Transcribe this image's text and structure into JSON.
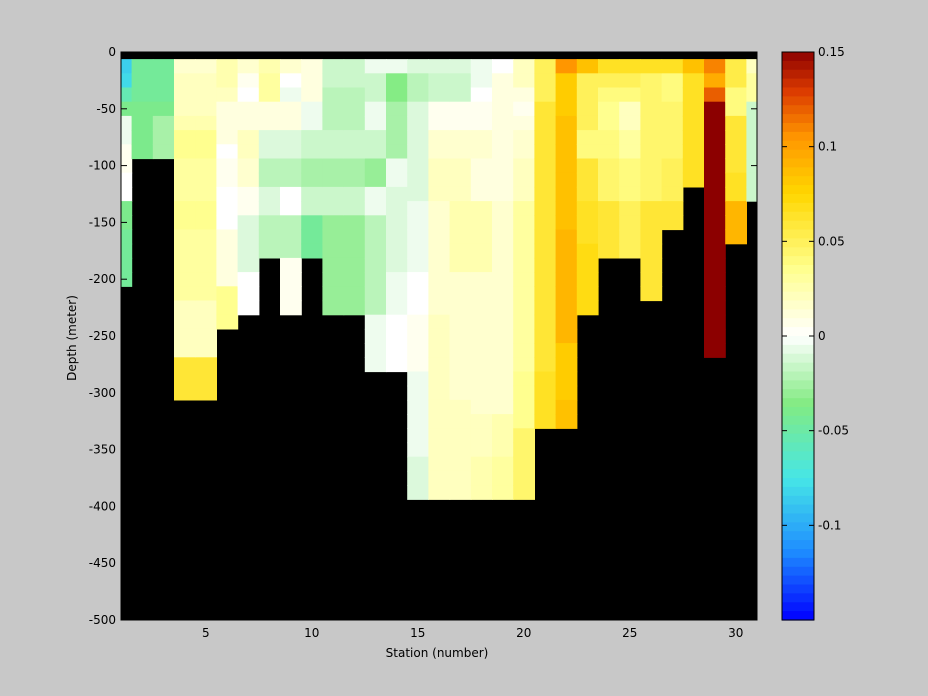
{
  "chart_data": {
    "type": "heatmap",
    "title": "",
    "xlabel": "Station (number)",
    "ylabel": "Depth (meter)",
    "xlim": [
      1,
      31
    ],
    "ylim": [
      -500,
      0
    ],
    "xticks": [
      5,
      10,
      15,
      20,
      25,
      30
    ],
    "yticks": [
      0,
      -50,
      -100,
      -150,
      -200,
      -250,
      -300,
      -350,
      -400,
      -450,
      -500
    ],
    "clim": [
      -0.15,
      0.15
    ],
    "colorbar_ticks": [
      0.15,
      0.1,
      0.05,
      0,
      -0.05,
      -0.1
    ],
    "missing_color": "#000000",
    "cell_depth_step": 12.5,
    "top_row_missing": true,
    "stations": [
      {
        "station": 1,
        "values": [
          -0.085,
          -0.08,
          -0.055,
          -0.04,
          -0.005,
          -0.005,
          0.005,
          0.005,
          0.0,
          0.0,
          -0.04,
          -0.04,
          -0.045,
          -0.045,
          -0.045,
          -0.045
        ]
      },
      {
        "station": 2,
        "values": [
          -0.045,
          -0.045,
          -0.045,
          -0.04,
          -0.04,
          -0.04,
          -0.04
        ]
      },
      {
        "station": 3,
        "values": [
          -0.045,
          -0.045,
          -0.045,
          -0.04,
          -0.025,
          -0.025,
          -0.025
        ]
      },
      {
        "station": 4,
        "values": [
          0.015,
          0.02,
          0.02,
          0.02,
          0.025,
          0.035,
          0.035,
          0.03,
          0.03,
          0.03,
          0.035,
          0.035,
          0.03,
          0.03,
          0.03,
          0.03,
          0.03,
          0.02,
          0.02,
          0.02,
          0.02,
          0.06,
          0.06,
          0.06
        ]
      },
      {
        "station": 5,
        "values": [
          0.015,
          0.02,
          0.02,
          0.02,
          0.025,
          0.035,
          0.035,
          0.03,
          0.03,
          0.03,
          0.035,
          0.035,
          0.03,
          0.03,
          0.03,
          0.03,
          0.03,
          0.02,
          0.02,
          0.02,
          0.02,
          0.06,
          0.06,
          0.06
        ]
      },
      {
        "station": 6,
        "values": [
          0.025,
          0.025,
          0.02,
          0.01,
          0.01,
          0.01,
          0.0,
          0.005,
          0.005,
          0.0,
          0.0,
          0.0,
          0.01,
          0.01,
          0.01,
          0.01,
          0.035,
          0.035,
          0.035
        ]
      },
      {
        "station": 7,
        "values": [
          0.015,
          0.005,
          0.0,
          0.01,
          0.01,
          0.02,
          0.02,
          0.015,
          0.015,
          0.005,
          0.005,
          -0.01,
          -0.01,
          -0.01,
          -0.01,
          0.0,
          0.0,
          0.0
        ]
      },
      {
        "station": 8,
        "values": [
          0.025,
          0.03,
          0.03,
          0.01,
          0.01,
          -0.01,
          -0.01,
          -0.02,
          -0.02,
          -0.01,
          -0.01,
          -0.02,
          -0.02,
          -0.02
        ]
      },
      {
        "station": 9,
        "values": [
          0.015,
          0.0,
          -0.005,
          0.01,
          0.01,
          -0.01,
          -0.01,
          -0.02,
          -0.02,
          0.0,
          0.0,
          -0.02,
          -0.02,
          -0.02,
          0.005,
          0.005,
          0.005,
          0.005
        ]
      },
      {
        "station": 10,
        "values": [
          0.01,
          0.01,
          0.01,
          -0.005,
          -0.005,
          -0.015,
          -0.015,
          -0.025,
          -0.025,
          -0.015,
          -0.015,
          -0.045,
          -0.045,
          -0.045
        ]
      },
      {
        "station": 11,
        "values": [
          -0.015,
          -0.015,
          -0.02,
          -0.02,
          -0.02,
          -0.015,
          -0.015,
          -0.025,
          -0.025,
          -0.015,
          -0.015,
          -0.03,
          -0.03,
          -0.03,
          -0.03,
          -0.03,
          -0.03,
          -0.03
        ]
      },
      {
        "station": 12,
        "values": [
          -0.015,
          -0.015,
          -0.02,
          -0.02,
          -0.02,
          -0.015,
          -0.015,
          -0.025,
          -0.025,
          -0.015,
          -0.015,
          -0.03,
          -0.03,
          -0.03,
          -0.03,
          -0.03,
          -0.03,
          -0.03
        ]
      },
      {
        "station": 13,
        "values": [
          -0.005,
          -0.015,
          -0.015,
          -0.005,
          -0.005,
          -0.015,
          -0.015,
          -0.03,
          -0.03,
          -0.005,
          -0.005,
          -0.02,
          -0.02,
          -0.02,
          -0.02,
          -0.02,
          -0.02,
          -0.02,
          -0.005,
          -0.005,
          -0.005,
          -0.005
        ]
      },
      {
        "station": 14,
        "values": [
          -0.005,
          -0.035,
          -0.035,
          -0.025,
          -0.025,
          -0.025,
          -0.025,
          -0.005,
          -0.005,
          -0.01,
          -0.01,
          -0.01,
          -0.01,
          -0.01,
          -0.01,
          -0.005,
          -0.005,
          -0.005,
          0.0,
          0.0,
          0.0,
          0.0
        ]
      },
      {
        "station": 15,
        "values": [
          -0.01,
          -0.02,
          -0.02,
          -0.01,
          -0.01,
          -0.01,
          -0.01,
          -0.01,
          -0.01,
          -0.01,
          -0.005,
          -0.005,
          -0.005,
          -0.005,
          -0.005,
          0.0,
          0.0,
          0.0,
          0.005,
          0.005,
          0.005,
          0.005,
          -0.005,
          -0.005,
          -0.005,
          -0.005,
          -0.005,
          -0.005,
          -0.01,
          -0.01,
          -0.01
        ]
      },
      {
        "station": 16,
        "values": [
          -0.01,
          -0.015,
          -0.015,
          0.005,
          0.005,
          0.015,
          0.015,
          0.02,
          0.02,
          0.02,
          0.015,
          0.015,
          0.015,
          0.015,
          0.015,
          0.015,
          0.015,
          0.015,
          0.02,
          0.02,
          0.02,
          0.02,
          0.02,
          0.02,
          0.02,
          0.02,
          0.02,
          0.02,
          0.02,
          0.02,
          0.02
        ]
      },
      {
        "station": 17,
        "values": [
          -0.01,
          -0.015,
          -0.015,
          0.005,
          0.005,
          0.015,
          0.015,
          0.02,
          0.02,
          0.02,
          0.025,
          0.025,
          0.025,
          0.025,
          0.025,
          0.015,
          0.015,
          0.015,
          0.015,
          0.015,
          0.015,
          0.015,
          0.015,
          0.015,
          0.02,
          0.02,
          0.02,
          0.02,
          0.02,
          0.02,
          0.02
        ]
      },
      {
        "station": 18,
        "values": [
          -0.005,
          -0.005,
          0.0,
          0.005,
          0.005,
          0.015,
          0.015,
          0.01,
          0.01,
          0.01,
          0.025,
          0.025,
          0.025,
          0.025,
          0.025,
          0.015,
          0.015,
          0.015,
          0.015,
          0.015,
          0.015,
          0.015,
          0.015,
          0.015,
          0.015,
          0.02,
          0.02,
          0.02,
          0.025,
          0.025,
          0.025
        ]
      },
      {
        "station": 19,
        "values": [
          0.0,
          0.01,
          0.01,
          0.01,
          0.01,
          0.01,
          0.01,
          0.01,
          0.01,
          0.01,
          0.015,
          0.015,
          0.015,
          0.015,
          0.015,
          0.015,
          0.015,
          0.015,
          0.015,
          0.015,
          0.015,
          0.015,
          0.015,
          0.015,
          0.015,
          0.025,
          0.025,
          0.025,
          0.03,
          0.03,
          0.03
        ]
      },
      {
        "station": 20,
        "values": [
          0.02,
          0.02,
          0.01,
          0.005,
          0.01,
          0.015,
          0.015,
          0.02,
          0.02,
          0.02,
          0.03,
          0.03,
          0.03,
          0.03,
          0.03,
          0.03,
          0.03,
          0.03,
          0.03,
          0.03,
          0.03,
          0.03,
          0.035,
          0.035,
          0.035,
          0.035,
          0.045,
          0.045,
          0.045,
          0.045,
          0.045
        ]
      },
      {
        "station": 21,
        "values": [
          0.05,
          0.05,
          0.05,
          0.06,
          0.06,
          0.06,
          0.06,
          0.06,
          0.06,
          0.06,
          0.06,
          0.06,
          0.06,
          0.06,
          0.06,
          0.06,
          0.06,
          0.06,
          0.06,
          0.06,
          0.06,
          0.06,
          0.065,
          0.065,
          0.065,
          0.065
        ]
      },
      {
        "station": 22,
        "values": [
          0.105,
          0.08,
          0.08,
          0.08,
          0.085,
          0.085,
          0.085,
          0.085,
          0.085,
          0.085,
          0.085,
          0.085,
          0.09,
          0.09,
          0.09,
          0.09,
          0.09,
          0.09,
          0.09,
          0.09,
          0.08,
          0.08,
          0.08,
          0.08,
          0.085,
          0.085
        ]
      },
      {
        "station": 23,
        "values": [
          0.085,
          0.05,
          0.05,
          0.05,
          0.05,
          0.04,
          0.04,
          0.06,
          0.06,
          0.06,
          0.065,
          0.065,
          0.065,
          0.07,
          0.07,
          0.07,
          0.07,
          0.07
        ]
      },
      {
        "station": 24,
        "values": [
          0.065,
          0.05,
          0.04,
          0.035,
          0.035,
          0.04,
          0.04,
          0.045,
          0.045,
          0.045,
          0.06,
          0.06,
          0.06,
          0.06
        ]
      },
      {
        "station": 25,
        "values": [
          0.065,
          0.05,
          0.04,
          0.02,
          0.02,
          0.03,
          0.03,
          0.04,
          0.04,
          0.04,
          0.05,
          0.05,
          0.05,
          0.05
        ]
      },
      {
        "station": 26,
        "values": [
          0.065,
          0.045,
          0.045,
          0.045,
          0.045,
          0.045,
          0.045,
          0.045,
          0.045,
          0.045,
          0.06,
          0.06,
          0.06,
          0.06,
          0.06,
          0.06,
          0.06
        ]
      },
      {
        "station": 27,
        "values": [
          0.065,
          0.04,
          0.04,
          0.045,
          0.045,
          0.045,
          0.045,
          0.05,
          0.05,
          0.05,
          0.06,
          0.06
        ]
      },
      {
        "station": 28,
        "values": [
          0.085,
          0.065,
          0.065,
          0.065,
          0.065,
          0.065,
          0.065,
          0.065,
          0.065
        ]
      },
      {
        "station": 29,
        "values": [
          0.11,
          0.095,
          0.12,
          0.15,
          0.15,
          0.15,
          0.15,
          0.15,
          0.15,
          0.15,
          0.15,
          0.15,
          0.15,
          0.15,
          0.15,
          0.15,
          0.15,
          0.15,
          0.15,
          0.15,
          0.15
        ]
      },
      {
        "station": 30,
        "values": [
          0.055,
          0.055,
          0.04,
          0.04,
          0.06,
          0.06,
          0.06,
          0.06,
          0.065,
          0.065,
          0.09,
          0.09,
          0.09
        ]
      },
      {
        "station": 31,
        "values": [
          0.02,
          0.03,
          0.03,
          -0.015,
          -0.015,
          -0.015,
          -0.015,
          -0.015,
          -0.015,
          -0.015
        ]
      }
    ]
  }
}
